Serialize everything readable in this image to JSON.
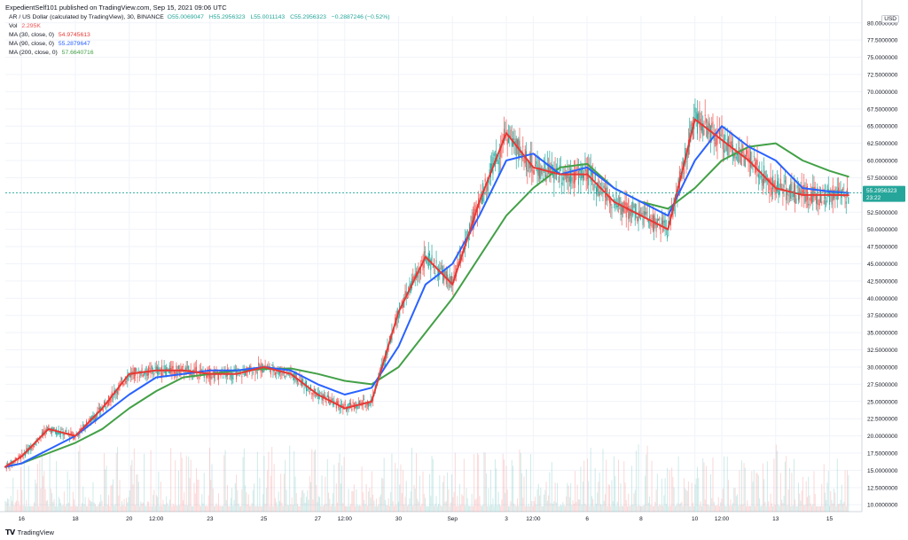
{
  "header": {
    "title": "ExpedientSelf101 published on TradingView.com, Sep 15, 2021 09:06 UTC"
  },
  "legend": {
    "symbol": "AR / US Dollar (calculated by TradingView), 30, BINANCE",
    "ohlc": {
      "o": "O55.0069047",
      "h": "H55.2956323",
      "l": "L55.0011143",
      "c": "C55.2956323",
      "chg": "−0.2887246 (−0.52%)"
    },
    "vol_label": "Vol",
    "vol_value": "2.295K",
    "ma30_label": "MA (30, close, 0)",
    "ma30_value": "54.9745613",
    "ma90_label": "MA (90, close, 0)",
    "ma90_value": "55.2879647",
    "ma200_label": "MA (200, close, 0)",
    "ma200_value": "57.6640716"
  },
  "currency": "USD",
  "footer": {
    "brand": "TradingView"
  },
  "price_tag": {
    "value": "55.2956323",
    "countdown": "23:22"
  },
  "colors": {
    "up": "#26a69a",
    "down": "#ef5350",
    "ma30": "#e53935",
    "ma90": "#2962ff",
    "ma200": "#43a047",
    "grid": "#f0f3fa"
  },
  "chart_data": {
    "type": "line",
    "ylim": [
      9,
      81
    ],
    "y_ticks": [
      "10.0000000",
      "12.5000000",
      "15.0000000",
      "17.5000000",
      "20.0000000",
      "22.5000000",
      "25.0000000",
      "27.5000000",
      "30.0000000",
      "32.5000000",
      "35.0000000",
      "37.5000000",
      "40.0000000",
      "42.5000000",
      "45.0000000",
      "47.5000000",
      "50.0000000",
      "52.5000000",
      "57.5000000",
      "60.0000000",
      "62.5000000",
      "65.0000000",
      "67.5000000",
      "70.0000000",
      "72.5000000",
      "75.0000000",
      "77.5000000",
      "80.0000000"
    ],
    "x_ticks": [
      "16",
      "18",
      "20",
      "12:00",
      "23",
      "25",
      "27",
      "12:00",
      "30",
      "Sep",
      "3",
      "12:00",
      "6",
      "8",
      "10",
      "12:00",
      "13",
      "15"
    ],
    "x_tick_days": [
      1,
      3,
      5,
      6,
      8,
      10,
      12,
      13,
      15,
      17,
      19,
      20,
      22,
      24,
      26,
      27,
      29,
      31
    ],
    "x_range_days": [
      0.4,
      32.2
    ],
    "series": [
      {
        "name": "MA (30, close, 0)",
        "x": [
          0.4,
          1,
          2,
          3,
          4,
          5,
          6,
          7,
          8,
          9,
          10,
          11,
          12,
          13,
          14,
          15,
          16,
          17,
          18,
          19,
          20,
          21,
          22,
          23,
          24,
          25,
          26,
          27,
          28,
          29,
          30,
          31,
          31.7
        ],
        "values": [
          15.5,
          17,
          21,
          20,
          24,
          29,
          29.5,
          29.5,
          29,
          29,
          30,
          29,
          26,
          24,
          25,
          38,
          46,
          42,
          54,
          64,
          59,
          58,
          58,
          54,
          52,
          50,
          66,
          63,
          60,
          56,
          55,
          55,
          54.97
        ]
      },
      {
        "name": "MA (90, close, 0)",
        "x": [
          0.4,
          1,
          2,
          3,
          4,
          5,
          6,
          7,
          8,
          9,
          10,
          11,
          12,
          13,
          14,
          15,
          16,
          17,
          18,
          19,
          20,
          21,
          22,
          23,
          24,
          25,
          26,
          27,
          28,
          29,
          30,
          31,
          31.7
        ],
        "values": [
          15.5,
          16,
          18,
          20,
          23,
          26,
          28.5,
          29,
          29.5,
          29.5,
          30,
          29.5,
          27.5,
          26,
          27,
          33,
          42,
          45,
          52,
          60,
          61,
          58,
          59,
          56,
          54,
          52,
          60,
          65,
          62,
          60,
          56,
          55.5,
          55.29
        ]
      },
      {
        "name": "MA (200, close, 0)",
        "x": [
          0.4,
          1,
          2,
          3,
          4,
          5,
          6,
          7,
          8,
          9,
          10,
          11,
          12,
          13,
          14,
          15,
          16,
          17,
          18,
          19,
          20,
          21,
          22,
          23,
          24,
          25,
          26,
          27,
          28,
          29,
          30,
          31,
          31.7
        ],
        "values": [
          15.5,
          16,
          17.5,
          19,
          21,
          24,
          26.5,
          28.5,
          29,
          29.5,
          29.7,
          29.8,
          29,
          28,
          27.5,
          30,
          35,
          40,
          46,
          52,
          56,
          59,
          59.5,
          56,
          54,
          53,
          56,
          60,
          62,
          62.5,
          60,
          58.5,
          57.66
        ]
      }
    ],
    "last_price": 55.2956323
  }
}
